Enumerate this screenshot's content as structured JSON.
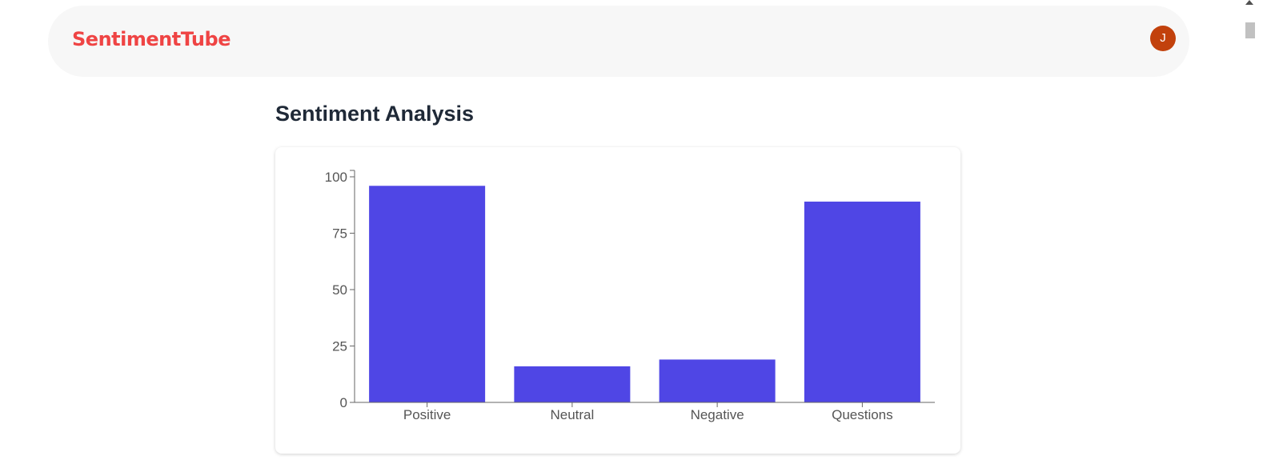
{
  "header": {
    "logo": "SentimentTube",
    "avatar_initial": "J"
  },
  "main": {
    "title": "Sentiment Analysis"
  },
  "chart_data": {
    "type": "bar",
    "categories": [
      "Positive",
      "Neutral",
      "Negative",
      "Questions"
    ],
    "values": [
      96,
      16,
      19,
      89
    ],
    "ylim": [
      0,
      100
    ],
    "yticks": [
      0,
      25,
      50,
      75,
      100
    ],
    "bar_color": "#4f46e5",
    "xlabel": "",
    "ylabel": ""
  }
}
